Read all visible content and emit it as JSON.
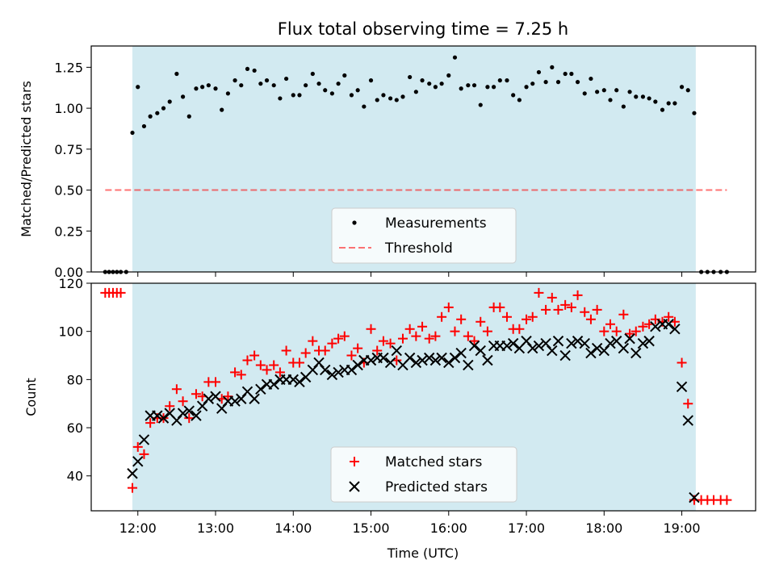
{
  "title": "Flux total observing time = 7.25 h",
  "colors": {
    "shade": "#add8e6",
    "measurement": "#000000",
    "threshold": "#ff0000",
    "matched": "#ff0000",
    "predicted": "#000000"
  },
  "chart_data": [
    {
      "type": "scatter",
      "ylabel": "Matched/Predicted stars",
      "xlim": [
        11.4,
        19.95
      ],
      "ylim": [
        0,
        1.38
      ],
      "yticks": [
        0,
        0.25,
        0.5,
        0.75,
        1.0,
        1.25
      ],
      "ytick_labels": [
        "0.00",
        "0.25",
        "0.50",
        "0.75",
        "1.00",
        "1.25"
      ],
      "shaded_interval": [
        11.93,
        19.18
      ],
      "legend": {
        "placement": "lower-center",
        "entries": [
          "Measurements",
          "Threshold"
        ]
      },
      "threshold": {
        "name": "Threshold",
        "value": 0.5,
        "x_range": [
          11.58,
          19.58
        ],
        "style": "dashed"
      },
      "series": [
        {
          "name": "Measurements",
          "marker": "dot",
          "x": [
            11.58,
            11.63,
            11.68,
            11.73,
            11.78,
            11.85,
            11.93,
            12.0,
            12.08,
            12.16,
            12.25,
            12.33,
            12.41,
            12.5,
            12.58,
            12.66,
            12.75,
            12.83,
            12.91,
            13.0,
            13.08,
            13.16,
            13.25,
            13.33,
            13.41,
            13.5,
            13.58,
            13.66,
            13.75,
            13.83,
            13.91,
            14.0,
            14.08,
            14.16,
            14.25,
            14.33,
            14.41,
            14.5,
            14.58,
            14.66,
            14.75,
            14.83,
            14.91,
            15.0,
            15.08,
            15.16,
            15.25,
            15.33,
            15.41,
            15.5,
            15.58,
            15.66,
            15.75,
            15.83,
            15.91,
            16.0,
            16.08,
            16.16,
            16.25,
            16.33,
            16.41,
            16.5,
            16.58,
            16.66,
            16.75,
            16.83,
            16.91,
            17.0,
            17.08,
            17.16,
            17.25,
            17.33,
            17.41,
            17.5,
            17.58,
            17.66,
            17.75,
            17.83,
            17.91,
            18.0,
            18.08,
            18.16,
            18.25,
            18.33,
            18.41,
            18.5,
            18.58,
            18.66,
            18.75,
            18.83,
            18.91,
            19.0,
            19.08,
            19.16,
            19.25,
            19.33,
            19.41,
            19.5,
            19.58
          ],
          "y": [
            0,
            0,
            0,
            0,
            0,
            0,
            0.85,
            1.13,
            0.89,
            0.95,
            0.97,
            1.0,
            1.04,
            1.21,
            1.07,
            0.95,
            1.12,
            1.13,
            1.14,
            1.12,
            0.99,
            1.09,
            1.17,
            1.14,
            1.24,
            1.23,
            1.15,
            1.17,
            1.14,
            1.06,
            1.18,
            1.08,
            1.08,
            1.14,
            1.21,
            1.15,
            1.11,
            1.09,
            1.15,
            1.2,
            1.08,
            1.11,
            1.01,
            1.17,
            1.05,
            1.08,
            1.06,
            1.05,
            1.07,
            1.19,
            1.1,
            1.17,
            1.15,
            1.13,
            1.15,
            1.2,
            1.31,
            1.12,
            1.14,
            1.14,
            1.02,
            1.13,
            1.13,
            1.17,
            1.17,
            1.08,
            1.05,
            1.13,
            1.15,
            1.22,
            1.16,
            1.25,
            1.16,
            1.21,
            1.21,
            1.16,
            1.09,
            1.18,
            1.1,
            1.11,
            1.05,
            1.11,
            1.01,
            1.1,
            1.07,
            1.07,
            1.06,
            1.04,
            0.99,
            1.03,
            1.03,
            1.13,
            1.11,
            0.97,
            0,
            0,
            0,
            0,
            0
          ]
        }
      ]
    },
    {
      "type": "scatter",
      "xlabel": "Time (UTC)",
      "ylabel": "Count",
      "xlim": [
        11.4,
        19.95
      ],
      "ylim": [
        25.5,
        120
      ],
      "yticks": [
        40,
        60,
        80,
        100,
        120
      ],
      "xticks": [
        12,
        13,
        14,
        15,
        16,
        17,
        18,
        19
      ],
      "xtick_labels": [
        "12:00",
        "13:00",
        "14:00",
        "15:00",
        "16:00",
        "17:00",
        "18:00",
        "19:00"
      ],
      "shaded_interval": [
        11.93,
        19.18
      ],
      "legend": {
        "placement": "lower-center",
        "entries": [
          "Matched stars",
          "Predicted stars"
        ]
      },
      "series": [
        {
          "name": "Matched stars",
          "marker": "plus",
          "x": [
            11.58,
            11.63,
            11.68,
            11.73,
            11.78,
            11.93,
            12.0,
            12.08,
            12.16,
            12.25,
            12.33,
            12.41,
            12.5,
            12.58,
            12.66,
            12.75,
            12.83,
            12.91,
            13.0,
            13.08,
            13.16,
            13.25,
            13.33,
            13.41,
            13.5,
            13.58,
            13.66,
            13.75,
            13.83,
            13.91,
            14.0,
            14.08,
            14.16,
            14.25,
            14.33,
            14.41,
            14.5,
            14.58,
            14.66,
            14.75,
            14.83,
            14.91,
            15.0,
            15.08,
            15.16,
            15.25,
            15.33,
            15.41,
            15.5,
            15.58,
            15.66,
            15.75,
            15.83,
            15.91,
            16.0,
            16.08,
            16.16,
            16.25,
            16.33,
            16.41,
            16.5,
            16.58,
            16.66,
            16.75,
            16.83,
            16.91,
            17.0,
            17.08,
            17.16,
            17.25,
            17.33,
            17.41,
            17.5,
            17.58,
            17.66,
            17.75,
            17.83,
            17.91,
            18.0,
            18.08,
            18.16,
            18.25,
            18.33,
            18.41,
            18.5,
            18.58,
            18.66,
            18.75,
            18.83,
            18.91,
            19.0,
            19.08,
            19.16,
            19.25,
            19.33,
            19.41,
            19.5,
            19.58
          ],
          "y": [
            116,
            116,
            116,
            116,
            116,
            35,
            52,
            49,
            62,
            64,
            64,
            69,
            76,
            71,
            64,
            74,
            73,
            79,
            79,
            72,
            73,
            83,
            82,
            88,
            90,
            86,
            84,
            86,
            83,
            92,
            87,
            87,
            91,
            96,
            92,
            92,
            95,
            97,
            98,
            90,
            93,
            87,
            101,
            92,
            96,
            95,
            88,
            97,
            101,
            98,
            102,
            97,
            98,
            106,
            110,
            100,
            105,
            98,
            96,
            104,
            100,
            110,
            110,
            106,
            101,
            101,
            105,
            106,
            116,
            109,
            114,
            109,
            111,
            110,
            115,
            108,
            105,
            109,
            100,
            103,
            100,
            107,
            99,
            100,
            102,
            103,
            105,
            104,
            106,
            104,
            87,
            70,
            30,
            30,
            30,
            30,
            30,
            30
          ]
        },
        {
          "name": "Predicted stars",
          "marker": "x",
          "x": [
            11.93,
            12.0,
            12.08,
            12.16,
            12.25,
            12.33,
            12.41,
            12.5,
            12.58,
            12.66,
            12.75,
            12.83,
            12.91,
            13.0,
            13.08,
            13.16,
            13.25,
            13.33,
            13.41,
            13.5,
            13.58,
            13.66,
            13.75,
            13.83,
            13.91,
            14.0,
            14.08,
            14.16,
            14.25,
            14.33,
            14.41,
            14.5,
            14.58,
            14.66,
            14.75,
            14.83,
            14.91,
            15.0,
            15.08,
            15.16,
            15.25,
            15.33,
            15.41,
            15.5,
            15.58,
            15.66,
            15.75,
            15.83,
            15.91,
            16.0,
            16.08,
            16.16,
            16.25,
            16.33,
            16.41,
            16.5,
            16.58,
            16.66,
            16.75,
            16.83,
            16.91,
            17.0,
            17.08,
            17.16,
            17.25,
            17.33,
            17.41,
            17.5,
            17.58,
            17.66,
            17.75,
            17.83,
            17.91,
            18.0,
            18.08,
            18.16,
            18.25,
            18.33,
            18.41,
            18.5,
            18.58,
            18.66,
            18.75,
            18.83,
            18.91,
            19.0,
            19.08,
            19.16
          ],
          "y": [
            41,
            46,
            55,
            65,
            65,
            64,
            66,
            63,
            66,
            67,
            65,
            69,
            72,
            73,
            68,
            71,
            71,
            72,
            75,
            72,
            76,
            78,
            78,
            80,
            80,
            80,
            79,
            81,
            84,
            87,
            84,
            82,
            83,
            84,
            84,
            86,
            88,
            88,
            89,
            89,
            87,
            92,
            86,
            89,
            87,
            88,
            89,
            88,
            89,
            87,
            89,
            91,
            86,
            94,
            92,
            88,
            94,
            94,
            94,
            95,
            93,
            96,
            93,
            94,
            95,
            92,
            96,
            90,
            95,
            96,
            95,
            91,
            93,
            92,
            95,
            96,
            93,
            97,
            91,
            95,
            96,
            102,
            103,
            103,
            101,
            77,
            63,
            31
          ]
        }
      ]
    }
  ]
}
